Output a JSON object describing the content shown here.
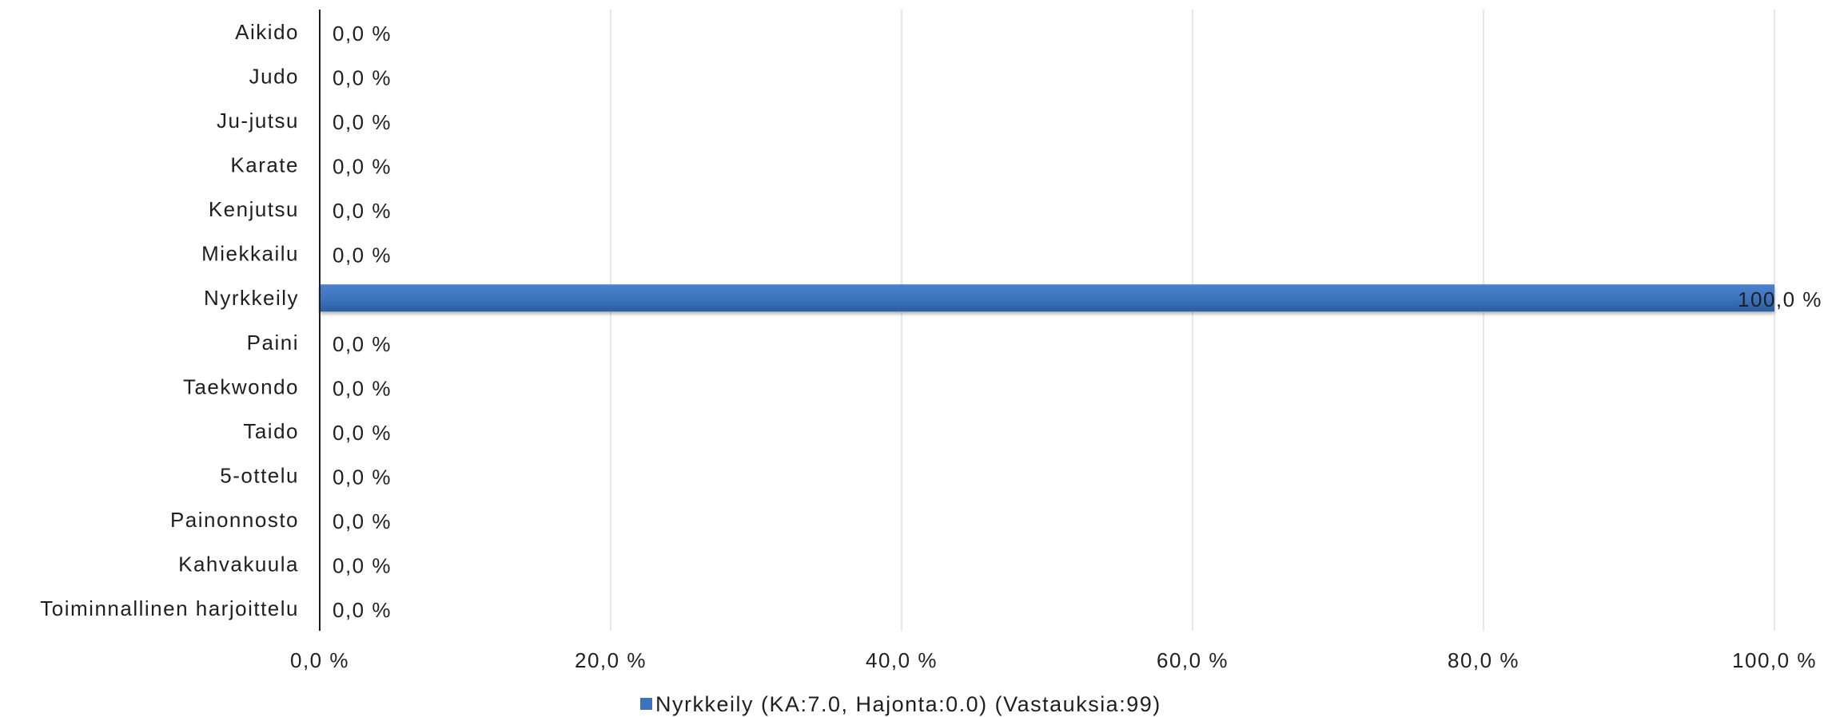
{
  "chart_data": {
    "type": "bar",
    "orientation": "horizontal",
    "categories": [
      "Aikido",
      "Judo",
      "Ju-jutsu",
      "Karate",
      "Kenjutsu",
      "Miekkailu",
      "Nyrkkeily",
      "Paini",
      "Taekwondo",
      "Taido",
      "5-ottelu",
      "Painonnosto",
      "Kahvakuula",
      "Toiminnallinen harjoittelu"
    ],
    "series": [
      {
        "name": "Nyrkkeily (KA:7.0, Hajonta:0.0) (Vastauksia:99)",
        "values": [
          0,
          0,
          0,
          0,
          0,
          0,
          100,
          0,
          0,
          0,
          0,
          0,
          0,
          0
        ],
        "value_labels": [
          "0,0 %",
          "0,0 %",
          "0,0 %",
          "0,0 %",
          "0,0 %",
          "0,0 %",
          "100,0 %",
          "0,0 %",
          "0,0 %",
          "0,0 %",
          "0,0 %",
          "0,0 %",
          "0,0 %",
          "0,0 %"
        ],
        "color": "#3c72be"
      }
    ],
    "x_ticks": [
      0,
      20,
      40,
      60,
      80,
      100
    ],
    "x_tick_labels": [
      "0,0 %",
      "20,0 %",
      "40,0 %",
      "60,0 %",
      "80,0 %",
      "100,0 %"
    ],
    "xlim": [
      0,
      100
    ],
    "grid": "vertical",
    "legend_position": "bottom",
    "title": "",
    "xlabel": "",
    "ylabel": ""
  }
}
